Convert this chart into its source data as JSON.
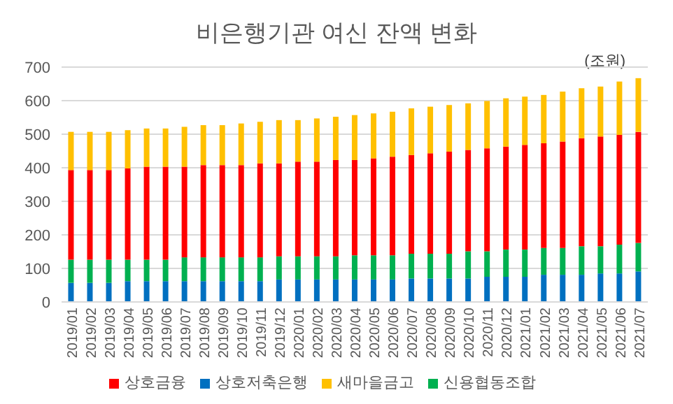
{
  "chart_data": {
    "type": "bar",
    "title": "비은행기관 여신 잔액 변화",
    "annotations": [
      "(조원)"
    ],
    "stacked": true,
    "grid": "y",
    "legend": "bottom",
    "categories": [
      "2019/01",
      "2019/02",
      "2019/03",
      "2019/04",
      "2019/05",
      "2019/06",
      "2019/07",
      "2019/08",
      "2019/09",
      "2019/10",
      "2019/11",
      "2019/12",
      "2020/01",
      "2020/02",
      "2020/03",
      "2020/04",
      "2020/05",
      "2020/06",
      "2020/07",
      "2020/08",
      "2020/09",
      "2020/10",
      "2020/11",
      "2020/12",
      "2021/01",
      "2021/02",
      "2021/03",
      "2021/04",
      "2021/05",
      "2021/06",
      "2021/07"
    ],
    "ylim": [
      0,
      700
    ],
    "yticks": [
      0,
      100,
      200,
      300,
      400,
      500,
      600,
      700
    ],
    "series": [
      {
        "name": "상호저축은행",
        "color": "#0070c0",
        "values": [
          57,
          57,
          57,
          62,
          62,
          62,
          62,
          62,
          62,
          62,
          62,
          67,
          67,
          67,
          67,
          67,
          67,
          67,
          70,
          70,
          70,
          70,
          75,
          75,
          75,
          81,
          81,
          81,
          85,
          85,
          91
        ]
      },
      {
        "name": "신용협동조합",
        "color": "#00b050",
        "values": [
          69,
          69,
          69,
          64,
          64,
          64,
          71,
          71,
          71,
          71,
          71,
          69,
          69,
          69,
          69,
          72,
          72,
          72,
          74,
          74,
          74,
          81,
          76,
          81,
          81,
          80,
          80,
          85,
          81,
          86,
          85
        ]
      },
      {
        "name": "상호금융",
        "color": "#ff0000",
        "values": [
          267,
          267,
          267,
          272,
          277,
          277,
          270,
          275,
          275,
          275,
          280,
          277,
          282,
          282,
          287,
          284,
          289,
          294,
          294,
          299,
          304,
          302,
          307,
          307,
          312,
          312,
          317,
          322,
          327,
          327,
          331
        ]
      },
      {
        "name": "새마을금고",
        "color": "#ffc000",
        "values": [
          114,
          114,
          114,
          114,
          114,
          114,
          119,
          119,
          119,
          124,
          124,
          129,
          124,
          129,
          129,
          134,
          134,
          134,
          139,
          139,
          139,
          139,
          141,
          144,
          144,
          144,
          149,
          149,
          149,
          159,
          160
        ]
      }
    ]
  }
}
